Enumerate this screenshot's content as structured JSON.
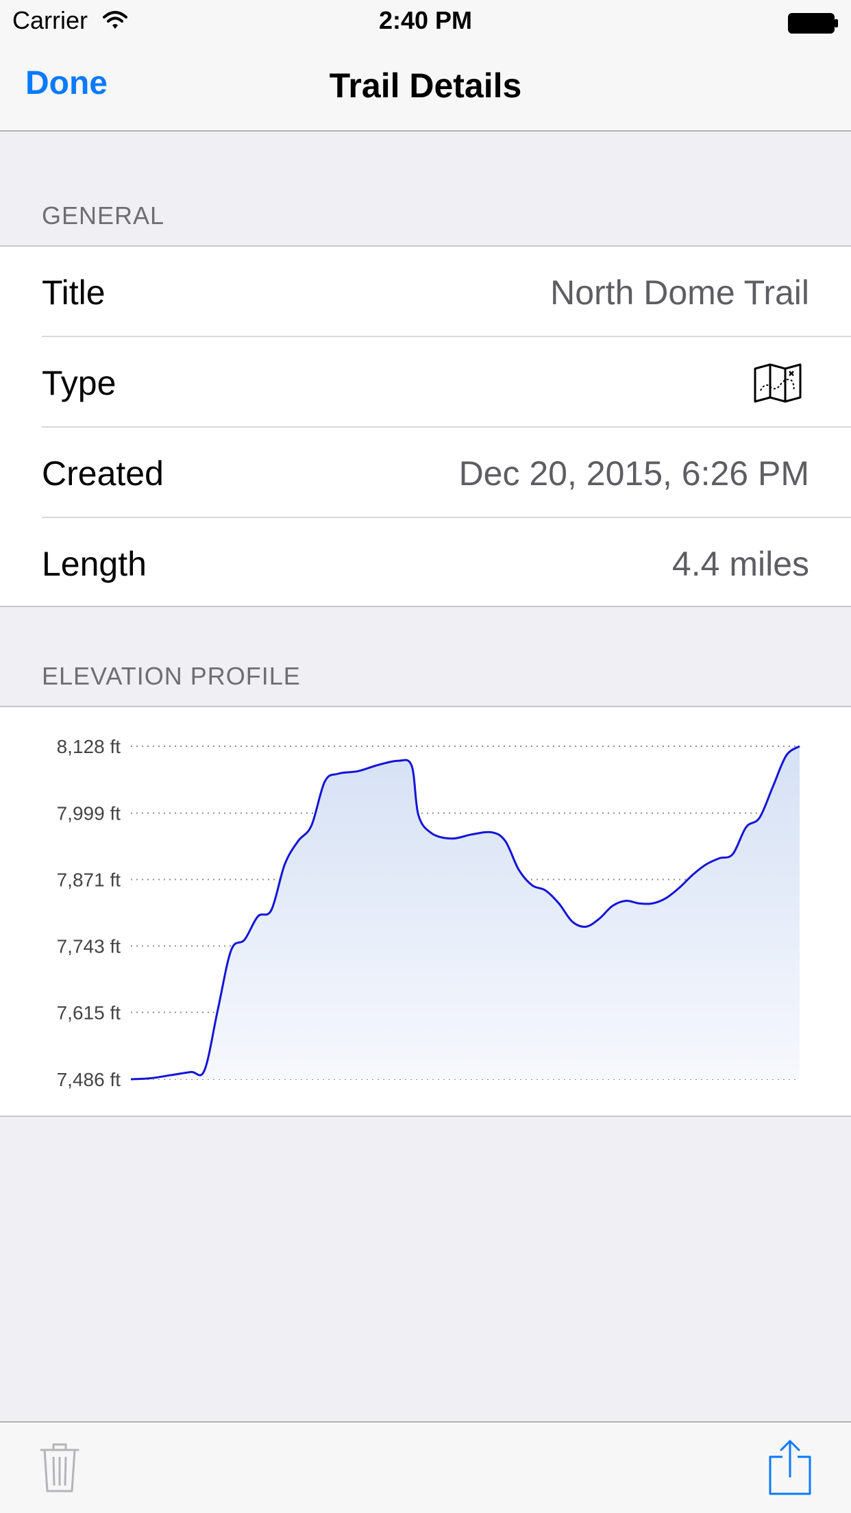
{
  "status": {
    "carrier": "Carrier",
    "time": "2:40 PM",
    "icons": [
      "wifi-icon",
      "battery-icon"
    ]
  },
  "nav": {
    "done_label": "Done",
    "title": "Trail Details"
  },
  "general": {
    "header": "GENERAL",
    "rows": [
      {
        "label": "Title",
        "value": "North Dome Trail"
      },
      {
        "label": "Type",
        "icon": "map-icon"
      },
      {
        "label": "Created",
        "value": "Dec 20, 2015, 6:26 PM"
      },
      {
        "label": "Length",
        "value": "4.4 miles"
      }
    ]
  },
  "elevation": {
    "header": "ELEVATION PROFILE"
  },
  "chart_data": {
    "type": "area",
    "title": "",
    "xlabel": "",
    "ylabel": "",
    "y_tick_labels": [
      "8,128 ft",
      "7,999 ft",
      "7,871 ft",
      "7,743 ft",
      "7,615 ft",
      "7,486 ft"
    ],
    "y_ticks": [
      8128,
      7999,
      7871,
      7743,
      7615,
      7486
    ],
    "ylim": [
      7486,
      8128
    ],
    "xlim": [
      0,
      1
    ],
    "grid": "dotted horizontal",
    "line_color": "#1414d6",
    "fill_color": "#dce5f6",
    "points": [
      [
        0.0,
        7486
      ],
      [
        0.03,
        7488
      ],
      [
        0.06,
        7494
      ],
      [
        0.09,
        7500
      ],
      [
        0.11,
        7503
      ],
      [
        0.13,
        7620
      ],
      [
        0.15,
        7735
      ],
      [
        0.17,
        7755
      ],
      [
        0.19,
        7800
      ],
      [
        0.21,
        7812
      ],
      [
        0.23,
        7900
      ],
      [
        0.25,
        7945
      ],
      [
        0.27,
        7975
      ],
      [
        0.29,
        8060
      ],
      [
        0.31,
        8075
      ],
      [
        0.34,
        8080
      ],
      [
        0.37,
        8092
      ],
      [
        0.4,
        8100
      ],
      [
        0.42,
        8090
      ],
      [
        0.43,
        7995
      ],
      [
        0.45,
        7960
      ],
      [
        0.48,
        7950
      ],
      [
        0.51,
        7958
      ],
      [
        0.54,
        7962
      ],
      [
        0.56,
        7945
      ],
      [
        0.58,
        7890
      ],
      [
        0.6,
        7860
      ],
      [
        0.62,
        7850
      ],
      [
        0.64,
        7825
      ],
      [
        0.66,
        7790
      ],
      [
        0.68,
        7780
      ],
      [
        0.7,
        7795
      ],
      [
        0.72,
        7820
      ],
      [
        0.74,
        7830
      ],
      [
        0.76,
        7825
      ],
      [
        0.78,
        7825
      ],
      [
        0.8,
        7835
      ],
      [
        0.82,
        7855
      ],
      [
        0.84,
        7880
      ],
      [
        0.86,
        7900
      ],
      [
        0.88,
        7912
      ],
      [
        0.9,
        7920
      ],
      [
        0.92,
        7972
      ],
      [
        0.94,
        7990
      ],
      [
        0.96,
        8050
      ],
      [
        0.98,
        8110
      ],
      [
        1.0,
        8128
      ]
    ]
  },
  "toolbar": {
    "icons": [
      "trash-icon",
      "share-icon"
    ]
  }
}
